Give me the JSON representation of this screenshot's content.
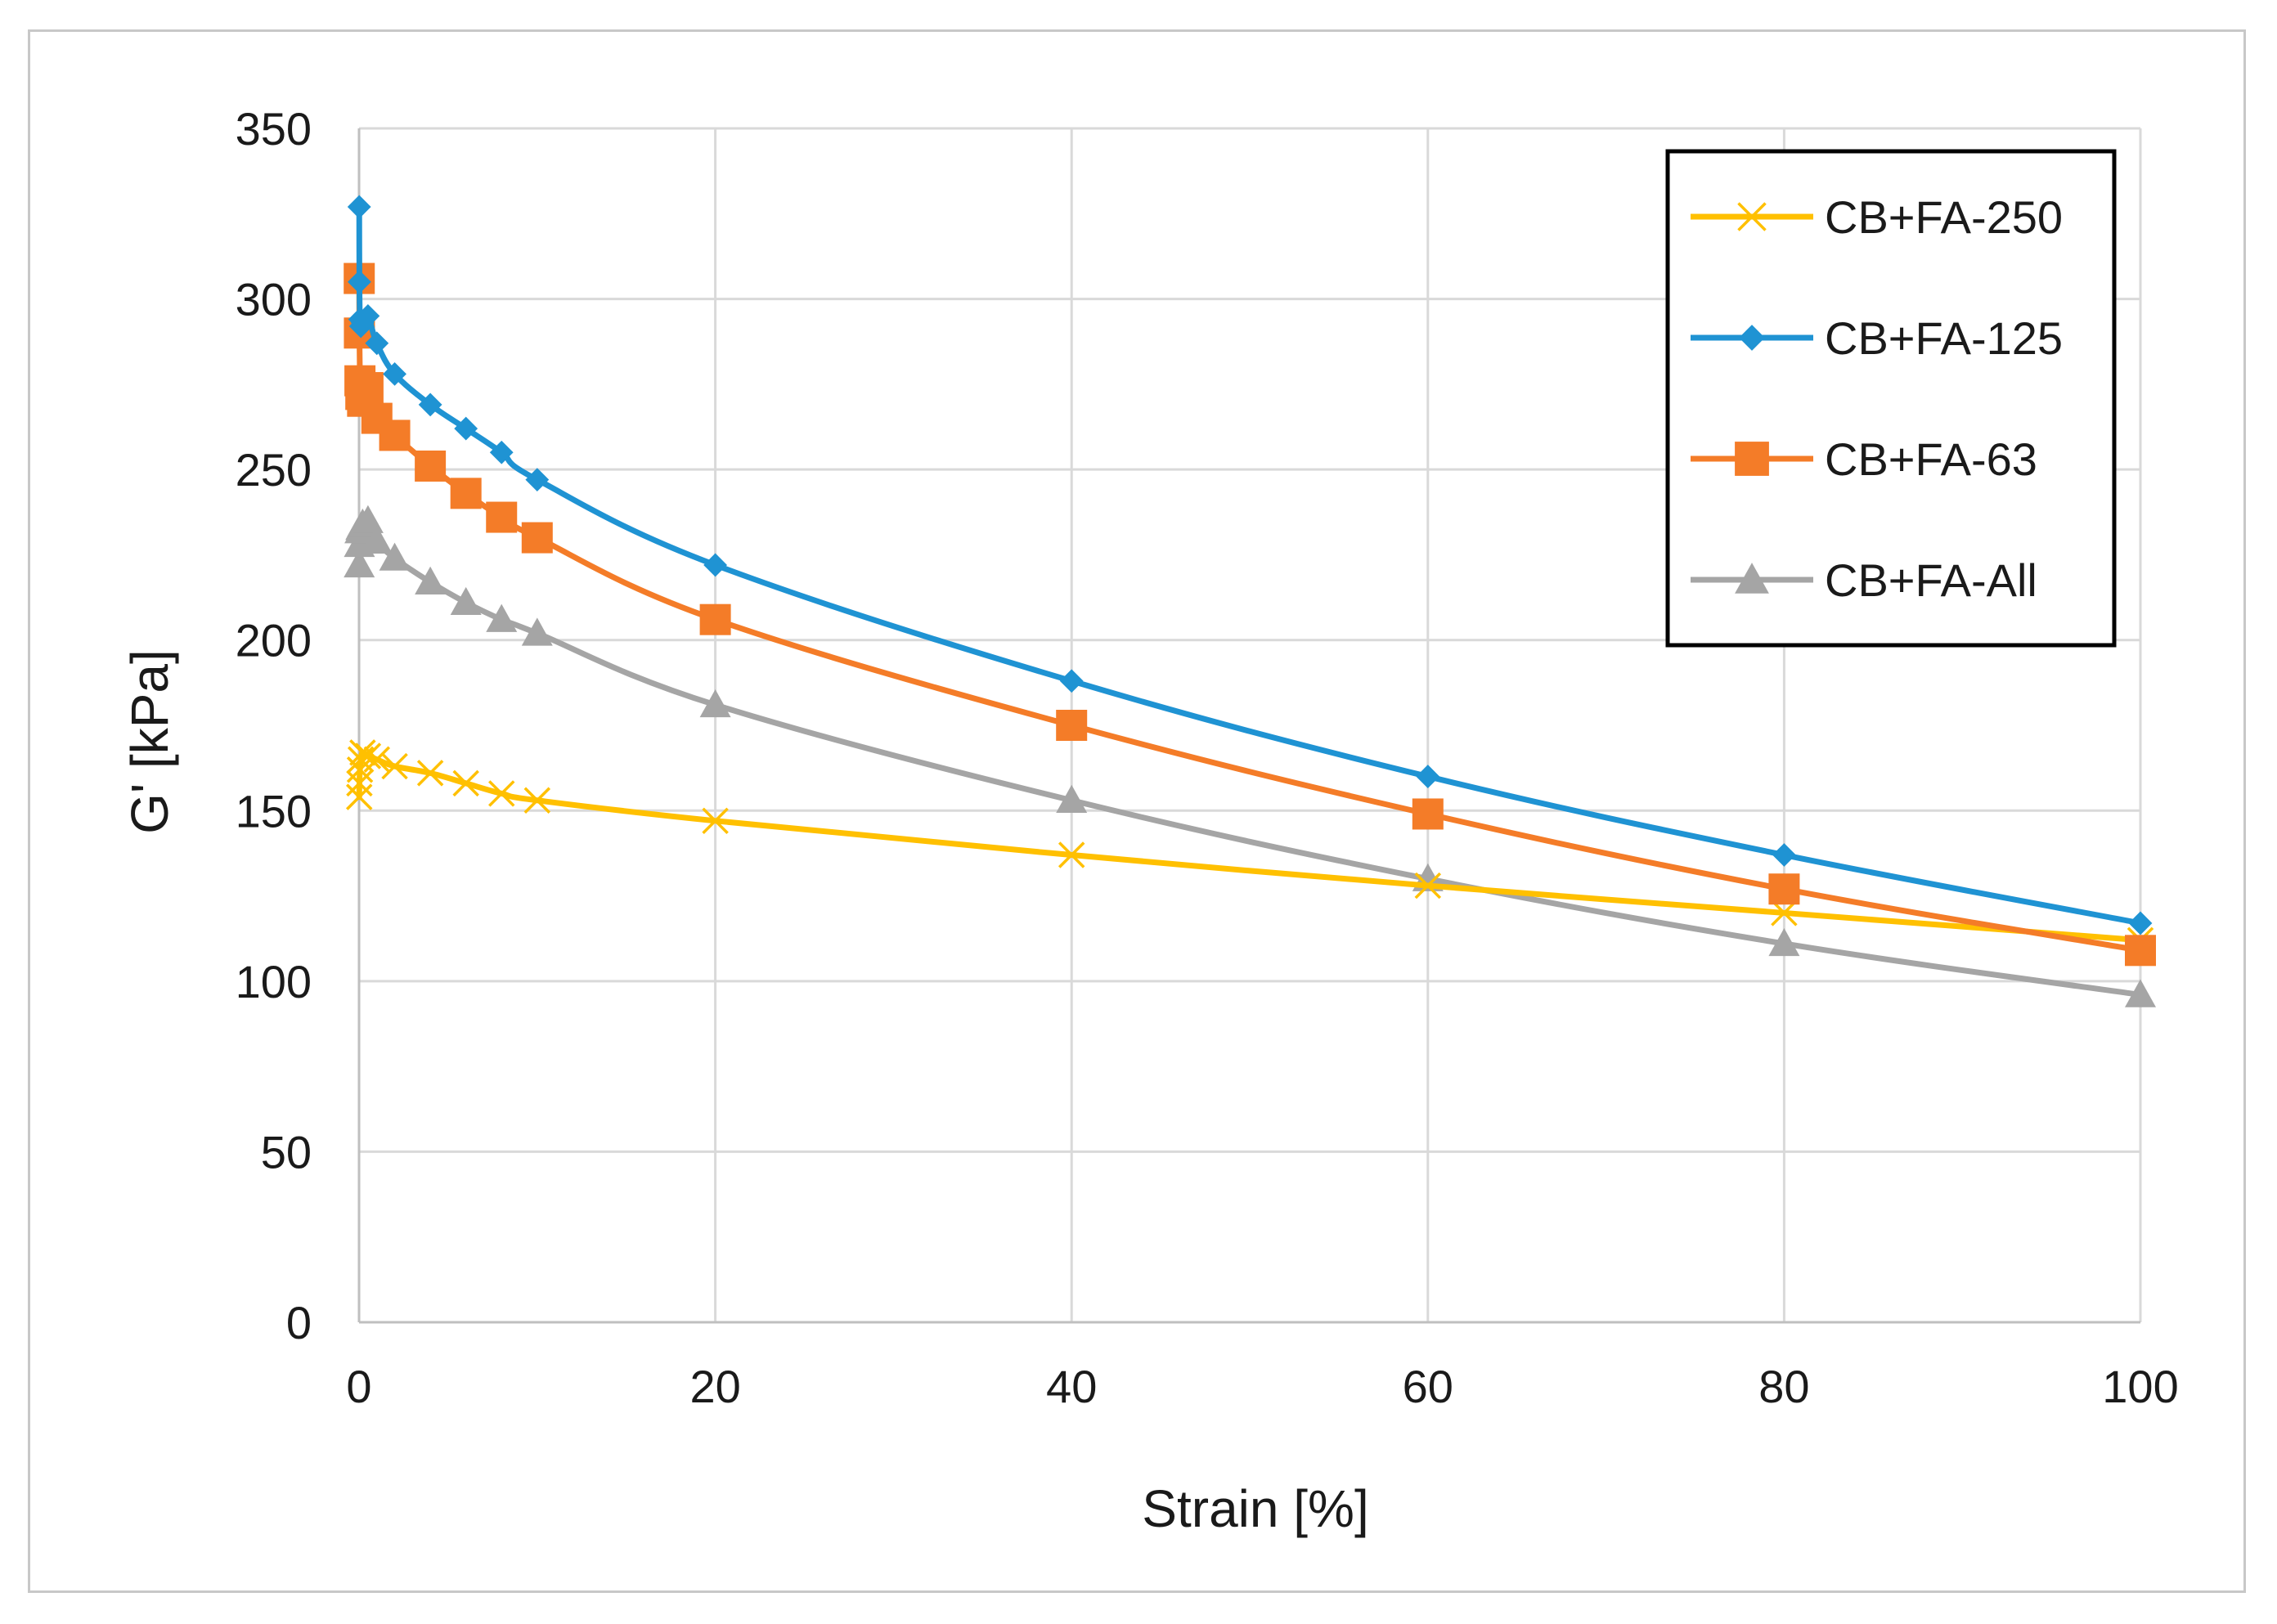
{
  "chart_data": {
    "type": "line",
    "title": "",
    "xlabel": "Strain [%]",
    "ylabel": "G' [kPa]",
    "xlim": [
      0,
      100
    ],
    "ylim": [
      0,
      350
    ],
    "x_ticks": [
      0,
      20,
      40,
      60,
      80,
      100
    ],
    "y_ticks": [
      0,
      50,
      100,
      150,
      200,
      250,
      300,
      350
    ],
    "grid": true,
    "legend_position": "top-right",
    "series": [
      {
        "name": "CB+FA-250",
        "color": "#FFC000",
        "marker": "x",
        "x": [
          0.01,
          0.02,
          0.05,
          0.1,
          0.2,
          0.5,
          1,
          2,
          4,
          6,
          8,
          10,
          20,
          40,
          60,
          80,
          100
        ],
        "y": [
          154,
          158,
          162,
          165,
          167,
          166,
          165,
          163,
          161,
          158,
          155,
          153,
          147,
          137,
          128,
          120,
          112
        ]
      },
      {
        "name": "CB+FA-125",
        "color": "#1F93D3",
        "marker": "diamond",
        "x": [
          0.01,
          0.02,
          0.05,
          0.1,
          0.2,
          0.5,
          1,
          2,
          4,
          6,
          8,
          10,
          20,
          40,
          60,
          80,
          100
        ],
        "y": [
          327,
          305,
          294,
          292,
          293,
          295,
          287,
          278,
          269,
          262,
          255,
          247,
          222,
          188,
          160,
          137,
          117
        ]
      },
      {
        "name": "CB+FA-63",
        "color": "#F47C28",
        "marker": "square",
        "x": [
          0.01,
          0.02,
          0.05,
          0.1,
          0.2,
          0.5,
          1,
          2,
          4,
          6,
          8,
          10,
          20,
          40,
          60,
          80,
          100
        ],
        "y": [
          306,
          290,
          276,
          272,
          270,
          274,
          265,
          260,
          251,
          243,
          236,
          230,
          206,
          175,
          149,
          127,
          109
        ]
      },
      {
        "name": "CB+FA-All",
        "color": "#A5A5A5",
        "marker": "triangle",
        "x": [
          0.01,
          0.02,
          0.05,
          0.1,
          0.2,
          0.5,
          1,
          2,
          4,
          6,
          8,
          10,
          20,
          40,
          60,
          80,
          100
        ],
        "y": [
          222,
          228,
          232,
          233,
          234,
          235,
          229,
          224,
          217,
          211,
          206,
          202,
          181,
          153,
          130,
          111,
          96
        ]
      }
    ]
  }
}
